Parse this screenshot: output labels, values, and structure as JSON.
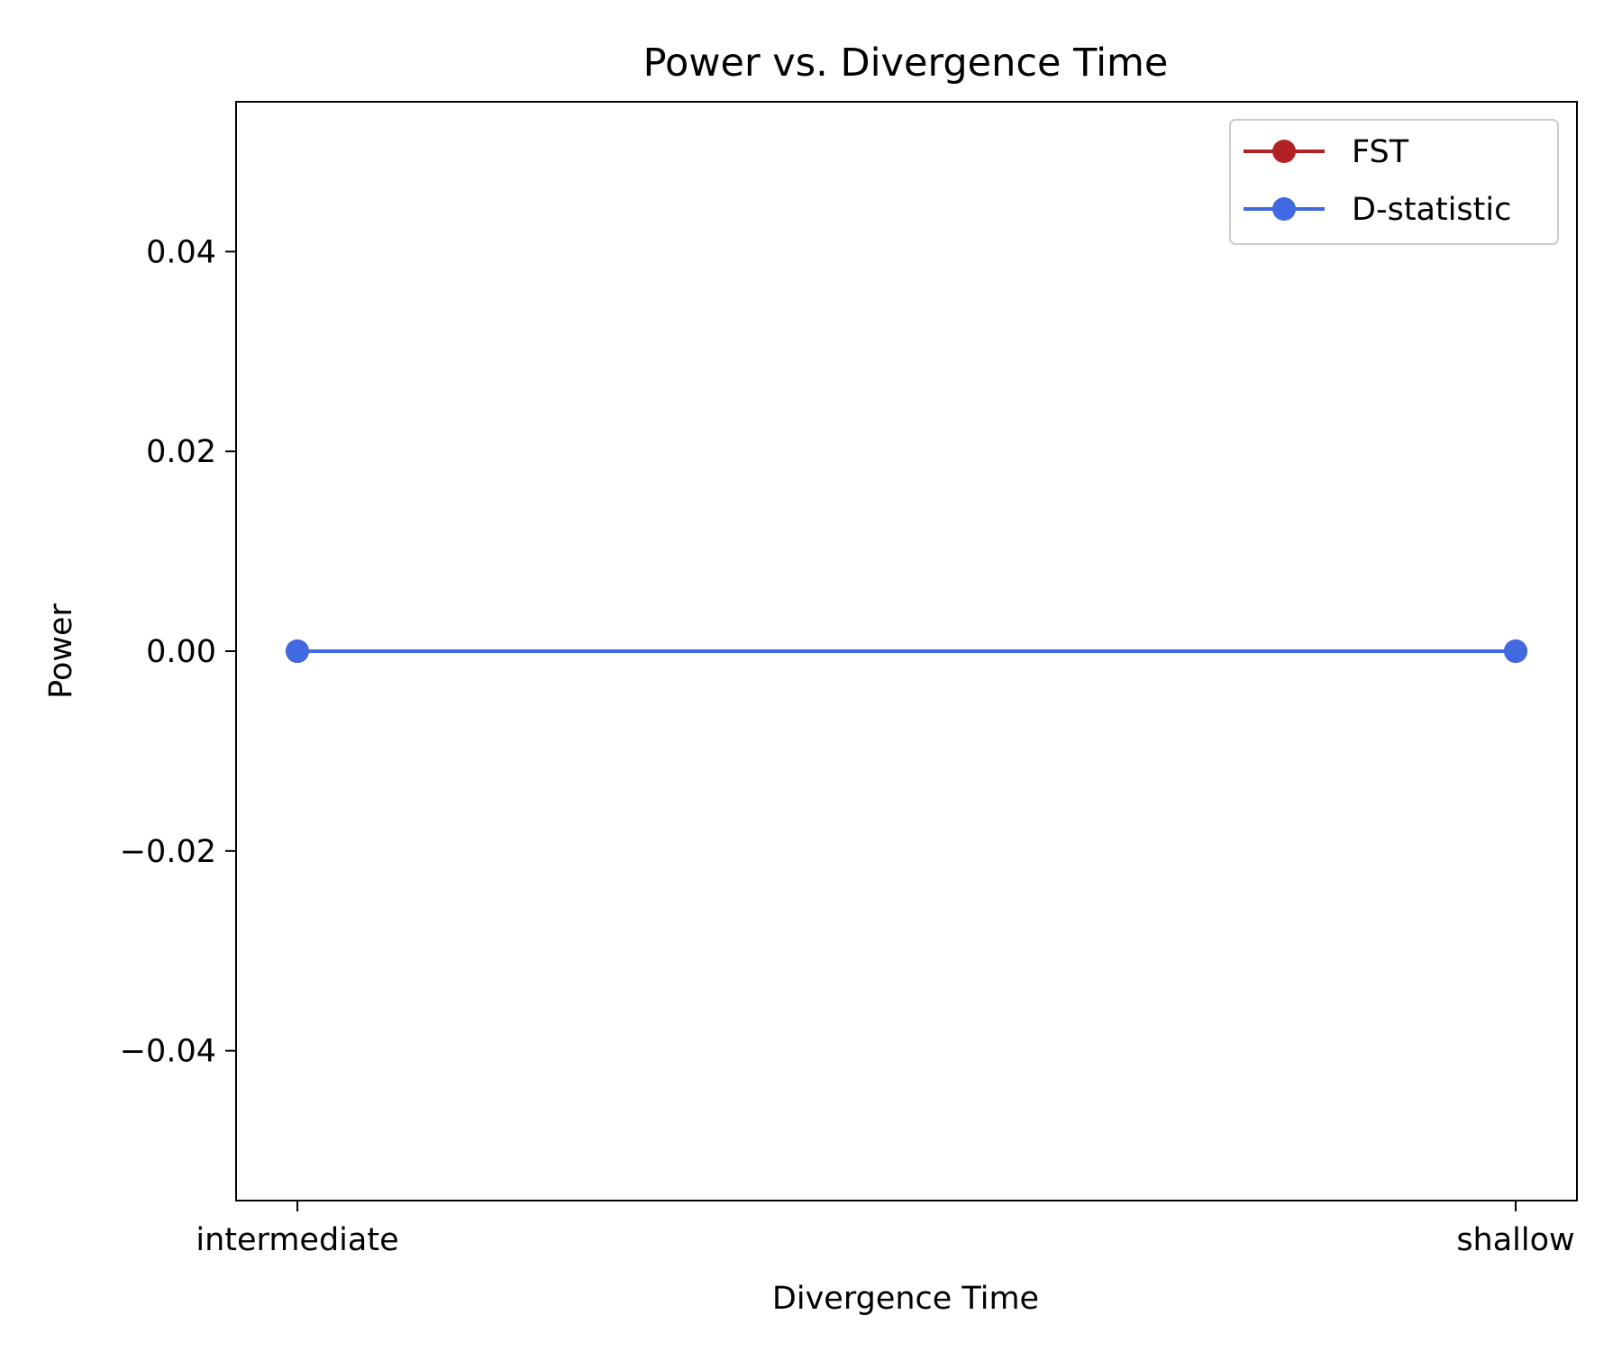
{
  "chart_data": {
    "type": "line",
    "title": "Power vs. Divergence Time",
    "xlabel": "Divergence Time",
    "ylabel": "Power",
    "categories": [
      "intermediate",
      "shallow"
    ],
    "ylim": [
      -0.055,
      0.055
    ],
    "yticks": [
      -0.04,
      -0.02,
      0.0,
      0.02,
      0.04
    ],
    "ytick_labels": [
      "−0.04",
      "−0.02",
      "0.00",
      "0.02",
      "0.04"
    ],
    "grid": false,
    "legend_position": "top-right",
    "series": [
      {
        "name": "FST",
        "values": [
          0,
          0
        ],
        "color": "#b22222",
        "marker": "circle"
      },
      {
        "name": "D-statistic",
        "values": [
          0,
          0
        ],
        "color": "#4169e1",
        "marker": "circle"
      }
    ]
  }
}
